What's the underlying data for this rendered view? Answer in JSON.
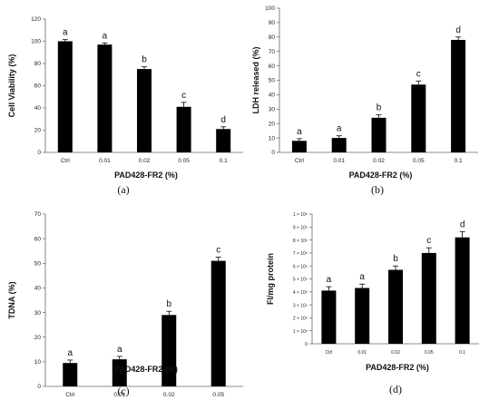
{
  "chart_data": [
    {
      "type": "bar",
      "panel_label": "(a)",
      "categories": [
        "Ctrl",
        "0.01",
        "0.02",
        "0.05",
        "0.1"
      ],
      "values": [
        100,
        97,
        75,
        41,
        21
      ],
      "errors": [
        1.5,
        1.5,
        2,
        4,
        2
      ],
      "significance": [
        "a",
        "a",
        "b",
        "c",
        "d"
      ],
      "xlabel": "PAD428-FR2 (%)",
      "ylabel": "Cell Viability (%)",
      "ylim": [
        0,
        120
      ],
      "yticks": [
        0,
        20,
        40,
        60,
        80,
        100,
        120
      ],
      "ytick_labels": [
        "0",
        "20",
        "40",
        "60",
        "80",
        "100",
        "120"
      ],
      "bar_color": "#000000"
    },
    {
      "type": "bar",
      "panel_label": "(b)",
      "categories": [
        "Ctrl",
        "0.01",
        "0.02",
        "0.05",
        "0.1"
      ],
      "values": [
        8,
        10,
        24,
        47,
        78
      ],
      "errors": [
        1.5,
        1.5,
        2,
        2.5,
        2
      ],
      "significance": [
        "a",
        "a",
        "b",
        "c",
        "d"
      ],
      "xlabel": "PAD428-FR2 (%)",
      "ylabel": "LDH released (%)",
      "ylim": [
        0,
        100
      ],
      "yticks": [
        0,
        10,
        20,
        30,
        40,
        50,
        60,
        70,
        80,
        90,
        100
      ],
      "ytick_labels": [
        "0",
        "10",
        "20",
        "30",
        "40",
        "50",
        "60",
        "70",
        "80",
        "90",
        "100"
      ],
      "bar_color": "#000000"
    },
    {
      "type": "bar",
      "panel_label": "(c)",
      "categories": [
        "Ctrl",
        "0.01",
        "0.02",
        "0.05"
      ],
      "values": [
        9.5,
        11,
        29,
        51
      ],
      "errors": [
        1.2,
        1.2,
        1.5,
        1.5
      ],
      "significance": [
        "a",
        "a",
        "b",
        "c"
      ],
      "xlabel": "PAD428-FR2 (%)",
      "ylabel": "TDNA (%)",
      "ylim": [
        0,
        70
      ],
      "yticks": [
        0,
        10,
        20,
        30,
        40,
        50,
        60,
        70
      ],
      "ytick_labels": [
        "0",
        "10",
        "20",
        "30",
        "40",
        "50",
        "60",
        "70"
      ],
      "bar_color": "#000000"
    },
    {
      "type": "bar",
      "panel_label": "(d)",
      "categories": [
        "Ctrl",
        "0.01",
        "0.02",
        "0.05",
        "0.1"
      ],
      "values": [
        410000,
        430000,
        570000,
        700000,
        820000
      ],
      "errors": [
        30000,
        30000,
        30000,
        40000,
        45000
      ],
      "significance": [
        "a",
        "a",
        "b",
        "c",
        "d"
      ],
      "xlabel": "PAD428-FR2 (%)",
      "ylabel": "FI/mg protein",
      "ylim": [
        0,
        1000000
      ],
      "yticks": [
        0,
        100000,
        200000,
        300000,
        400000,
        500000,
        600000,
        700000,
        800000,
        900000,
        1000000
      ],
      "ytick_labels": [
        "0",
        "1 × 10⁵",
        "2 × 10⁵",
        "3 × 10⁵",
        "4 × 10⁵",
        "5 × 10⁵",
        "6 × 10⁵",
        "7 × 10⁵",
        "8 × 10⁵",
        "9 × 10⁵",
        "1 × 10⁶"
      ],
      "bar_color": "#000000"
    }
  ]
}
